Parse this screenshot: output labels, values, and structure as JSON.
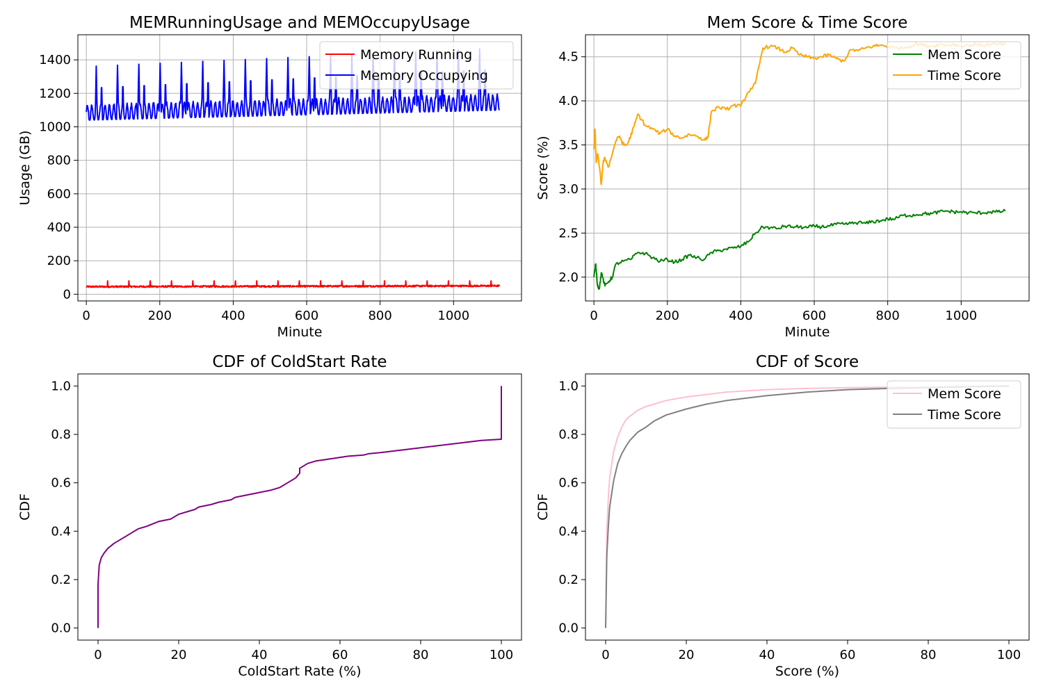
{
  "chart_data": [
    {
      "type": "line",
      "title": "MEMRunningUsage and MEMOccupyUsage",
      "xlabel": "Minute",
      "ylabel": "Usage (GB)",
      "xlim": [
        -23,
        1185
      ],
      "ylim": [
        -40,
        1550
      ],
      "xticks": [
        0,
        200,
        400,
        600,
        800,
        1000
      ],
      "yticks": [
        0,
        200,
        400,
        600,
        800,
        1000,
        1200,
        1400
      ],
      "grid": true,
      "legend": "top-right",
      "series": [
        {
          "name": "Memory Running",
          "color": "#ff0000",
          "pattern": {
            "type": "noisy",
            "x_start": 0,
            "x_end": 1125,
            "base_start": 45,
            "base_end": 50,
            "noise": 10,
            "spike_every": 58,
            "spike": 80
          }
        },
        {
          "name": "Memory Occupying",
          "color": "#0000ff",
          "pattern": {
            "type": "periodic",
            "x_start": 0,
            "x_end": 1125,
            "base_start": 1080,
            "base_end": 1140,
            "trend_end": 1200,
            "small_period": 12,
            "small_amp": 50,
            "big_period": 58,
            "big_first": 1360,
            "big_last": 1470
          }
        }
      ]
    },
    {
      "type": "line",
      "title": "Mem Score & Time Score",
      "xlabel": "Minute",
      "ylabel": "Score (%)",
      "xlim": [
        -23,
        1185
      ],
      "ylim": [
        1.73,
        4.75
      ],
      "xticks": [
        0,
        200,
        400,
        600,
        800,
        1000
      ],
      "yticks": [
        2.0,
        2.5,
        3.0,
        3.5,
        4.0,
        4.5
      ],
      "ytick_labels": [
        "2.0",
        "2.5",
        "3.0",
        "3.5",
        "4.0",
        "4.5"
      ],
      "grid": true,
      "legend": "top-right",
      "series": [
        {
          "name": "Mem Score",
          "color": "#008000",
          "x": [
            0,
            5,
            10,
            15,
            20,
            30,
            40,
            50,
            60,
            80,
            100,
            120,
            140,
            160,
            180,
            200,
            220,
            240,
            260,
            280,
            300,
            320,
            340,
            360,
            380,
            400,
            420,
            440,
            460,
            480,
            500,
            520,
            540,
            560,
            580,
            600,
            620,
            640,
            660,
            680,
            700,
            720,
            740,
            760,
            780,
            800,
            820,
            840,
            860,
            880,
            900,
            920,
            940,
            960,
            980,
            1000,
            1020,
            1040,
            1060,
            1080,
            1100,
            1120
          ],
          "values": [
            2.0,
            2.15,
            1.9,
            1.87,
            2.05,
            1.9,
            1.95,
            2.0,
            2.15,
            2.18,
            2.2,
            2.28,
            2.27,
            2.22,
            2.18,
            2.2,
            2.17,
            2.2,
            2.25,
            2.22,
            2.2,
            2.28,
            2.3,
            2.32,
            2.33,
            2.35,
            2.4,
            2.5,
            2.57,
            2.56,
            2.55,
            2.58,
            2.57,
            2.57,
            2.56,
            2.58,
            2.57,
            2.58,
            2.6,
            2.6,
            2.61,
            2.62,
            2.61,
            2.63,
            2.64,
            2.66,
            2.66,
            2.7,
            2.7,
            2.71,
            2.72,
            2.72,
            2.74,
            2.75,
            2.74,
            2.74,
            2.73,
            2.73,
            2.73,
            2.74,
            2.74,
            2.75
          ]
        },
        {
          "name": "Time Score",
          "color": "#ffa500",
          "x": [
            0,
            3,
            6,
            10,
            15,
            20,
            25,
            30,
            40,
            50,
            60,
            70,
            80,
            90,
            100,
            110,
            120,
            140,
            160,
            180,
            200,
            220,
            240,
            260,
            280,
            300,
            310,
            320,
            340,
            360,
            380,
            400,
            420,
            440,
            450,
            460,
            480,
            500,
            520,
            540,
            560,
            580,
            600,
            620,
            640,
            660,
            680,
            700,
            720,
            740,
            760,
            780,
            800,
            820,
            840,
            860,
            880,
            900,
            920,
            940,
            960,
            980,
            1000,
            1020,
            1040,
            1060,
            1080,
            1100,
            1120
          ],
          "values": [
            3.45,
            3.68,
            3.3,
            3.4,
            3.25,
            3.05,
            3.3,
            3.35,
            3.25,
            3.4,
            3.55,
            3.6,
            3.5,
            3.5,
            3.6,
            3.72,
            3.85,
            3.72,
            3.68,
            3.63,
            3.68,
            3.6,
            3.58,
            3.62,
            3.6,
            3.56,
            3.58,
            3.88,
            3.93,
            3.9,
            3.95,
            3.94,
            4.1,
            4.2,
            4.4,
            4.6,
            4.62,
            4.6,
            4.55,
            4.6,
            4.52,
            4.5,
            4.48,
            4.5,
            4.52,
            4.48,
            4.45,
            4.58,
            4.57,
            4.6,
            4.62,
            4.63,
            4.62,
            4.6,
            4.6,
            4.62,
            4.65,
            4.63,
            4.62,
            4.64,
            4.63,
            4.64,
            4.62,
            4.63,
            4.64,
            4.63,
            4.64,
            4.64,
            4.64
          ]
        }
      ]
    },
    {
      "type": "line",
      "title": "CDF of ColdStart Rate",
      "xlabel": "ColdStart Rate (%)",
      "ylabel": "CDF",
      "xlim": [
        -5,
        105
      ],
      "ylim": [
        -0.05,
        1.05
      ],
      "xticks": [
        0,
        20,
        40,
        60,
        80,
        100
      ],
      "yticks": [
        0.0,
        0.2,
        0.4,
        0.6,
        0.8,
        1.0
      ],
      "ytick_labels": [
        "0.0",
        "0.2",
        "0.4",
        "0.6",
        "0.8",
        "1.0"
      ],
      "grid": false,
      "series": [
        {
          "color": "#800080",
          "x": [
            0,
            0,
            0.3,
            0.8,
            1.5,
            2.5,
            4,
            6,
            8,
            10,
            12,
            15,
            18,
            20,
            24,
            25,
            28,
            30,
            33,
            34,
            37,
            40,
            43,
            45,
            47,
            49,
            50,
            50,
            52,
            54,
            56,
            60,
            62,
            66,
            67,
            70,
            75,
            80,
            85,
            90,
            95,
            100,
            100
          ],
          "values": [
            0.0,
            0.18,
            0.26,
            0.29,
            0.31,
            0.33,
            0.35,
            0.37,
            0.39,
            0.41,
            0.42,
            0.44,
            0.45,
            0.47,
            0.49,
            0.5,
            0.51,
            0.52,
            0.53,
            0.54,
            0.55,
            0.56,
            0.57,
            0.58,
            0.6,
            0.62,
            0.64,
            0.66,
            0.68,
            0.69,
            0.695,
            0.705,
            0.71,
            0.715,
            0.72,
            0.725,
            0.735,
            0.745,
            0.755,
            0.765,
            0.775,
            0.78,
            1.0
          ]
        }
      ]
    },
    {
      "type": "line",
      "title": "CDF of Score",
      "xlabel": "Score (%)",
      "ylabel": "CDF",
      "xlim": [
        -5,
        105
      ],
      "ylim": [
        -0.05,
        1.05
      ],
      "xticks": [
        0,
        20,
        40,
        60,
        80,
        100
      ],
      "yticks": [
        0.0,
        0.2,
        0.4,
        0.6,
        0.8,
        1.0
      ],
      "ytick_labels": [
        "0.0",
        "0.2",
        "0.4",
        "0.6",
        "0.8",
        "1.0"
      ],
      "grid": false,
      "legend": "top-right",
      "series": [
        {
          "name": "Mem Score",
          "color": "#ffc0cb",
          "x": [
            0,
            0.3,
            0.7,
            1,
            2,
            3,
            4,
            5,
            6,
            8,
            10,
            12,
            15,
            20,
            25,
            30,
            40,
            50,
            60,
            70,
            80,
            90,
            100
          ],
          "values": [
            0.0,
            0.4,
            0.55,
            0.62,
            0.73,
            0.79,
            0.83,
            0.86,
            0.875,
            0.9,
            0.915,
            0.925,
            0.94,
            0.955,
            0.965,
            0.975,
            0.985,
            0.99,
            0.993,
            0.995,
            0.997,
            0.999,
            1.0
          ]
        },
        {
          "name": "Time Score",
          "color": "#808080",
          "x": [
            0,
            0.3,
            0.7,
            1,
            2,
            3,
            4,
            5,
            6,
            8,
            10,
            12,
            15,
            20,
            25,
            30,
            40,
            50,
            60,
            70,
            80,
            90,
            100
          ],
          "values": [
            0.0,
            0.3,
            0.43,
            0.5,
            0.61,
            0.68,
            0.72,
            0.75,
            0.775,
            0.81,
            0.83,
            0.855,
            0.88,
            0.905,
            0.925,
            0.94,
            0.96,
            0.975,
            0.985,
            0.99,
            0.993,
            0.997,
            1.0
          ]
        }
      ]
    }
  ]
}
